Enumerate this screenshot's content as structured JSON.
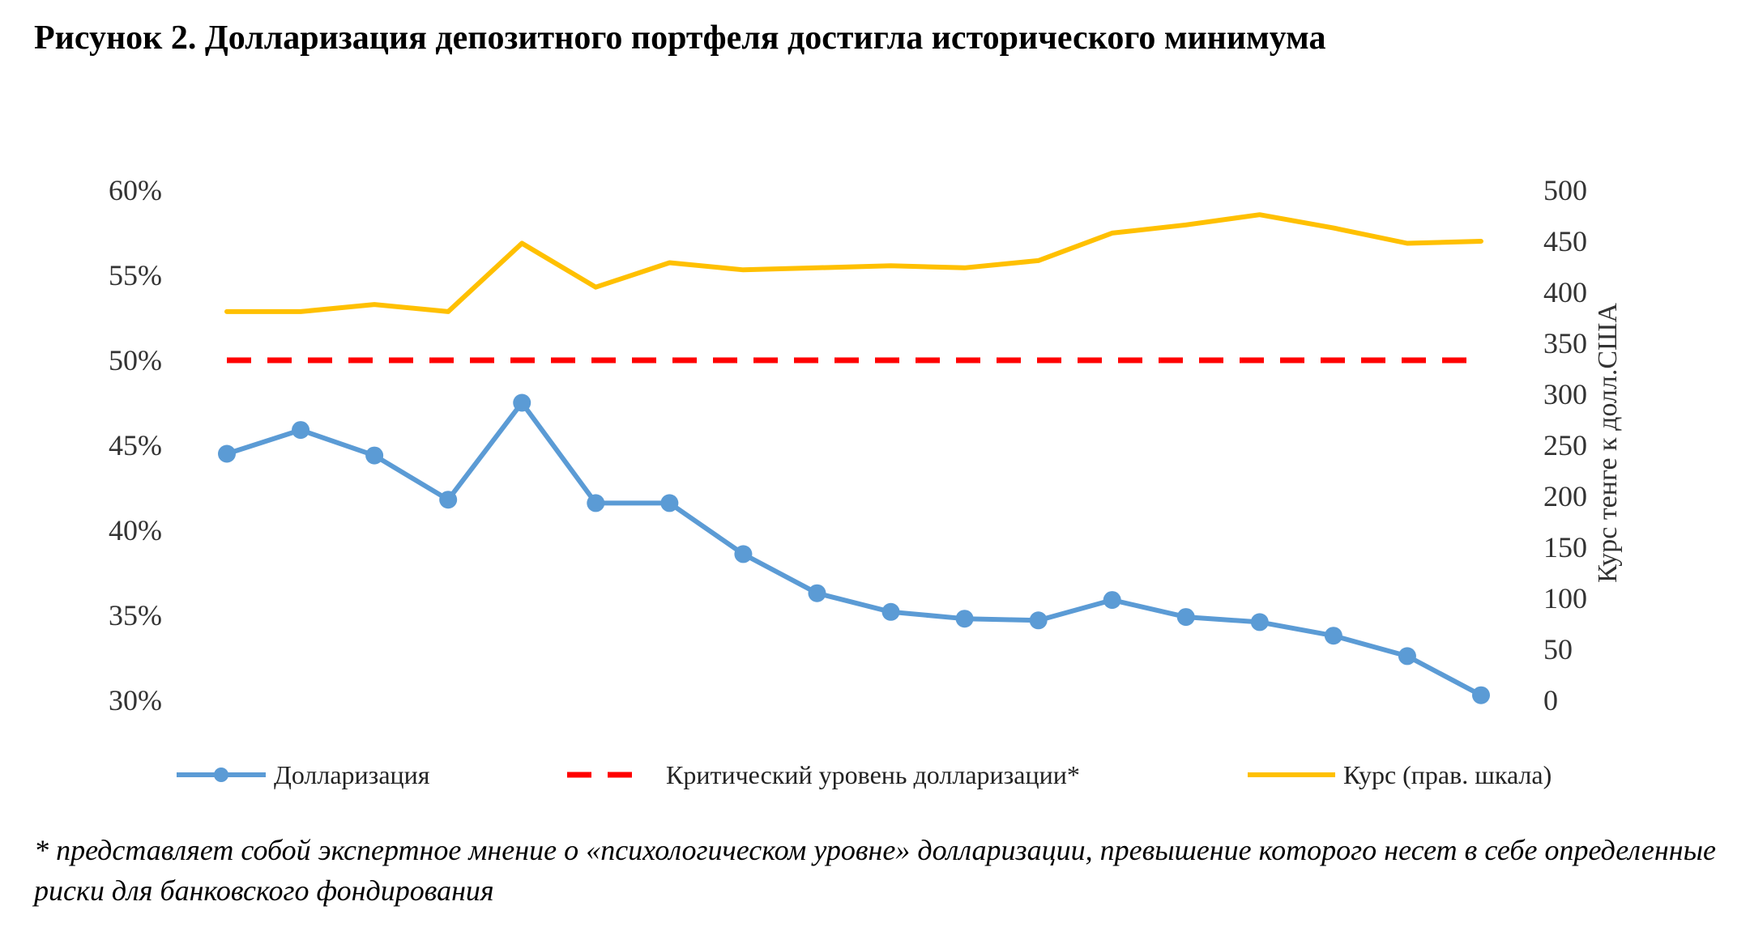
{
  "title": "Рисунок 2. Долларизация депозитного портфеля достигла исторического минимума",
  "footnote": "* представляет собой экспертное мнение о «психологическом уровне» долларизации, превышение которого несет в себе определенные риски для банковского фондирования",
  "chart_data": {
    "type": "line",
    "y_left": {
      "ticks": [
        "30%",
        "35%",
        "40%",
        "45%",
        "50%",
        "55%",
        "60%"
      ],
      "range": [
        30,
        60
      ]
    },
    "y_right": {
      "ticks": [
        "0",
        "50",
        "100",
        "150",
        "200",
        "250",
        "300",
        "350",
        "400",
        "450",
        "500"
      ],
      "range": [
        0,
        500
      ],
      "label": "Курс тенге к долл.США"
    },
    "series": [
      {
        "name": "Долларизация",
        "axis": "left",
        "color": "#5B9BD5",
        "marker": "circle",
        "values": [
          44.5,
          45.9,
          44.4,
          41.8,
          47.5,
          41.6,
          41.6,
          38.6,
          36.3,
          35.2,
          34.8,
          34.7,
          35.9,
          34.9,
          34.6,
          33.8,
          32.6,
          30.3
        ]
      },
      {
        "name": "Критический уровень долларизации*",
        "axis": "left",
        "color": "#FF0000",
        "style": "dashed",
        "values": [
          50,
          50,
          50,
          50,
          50,
          50,
          50,
          50,
          50,
          50,
          50,
          50,
          50,
          50,
          50,
          50,
          50,
          50
        ]
      },
      {
        "name": "Курс (прав. шкала)",
        "axis": "right",
        "color": "#FFC000",
        "values": [
          381,
          381,
          388,
          381,
          448,
          405,
          429,
          422,
          424,
          426,
          424,
          431,
          458,
          466,
          476,
          463,
          448,
          450
        ]
      }
    ],
    "legend_position": "bottom",
    "grid": false
  }
}
